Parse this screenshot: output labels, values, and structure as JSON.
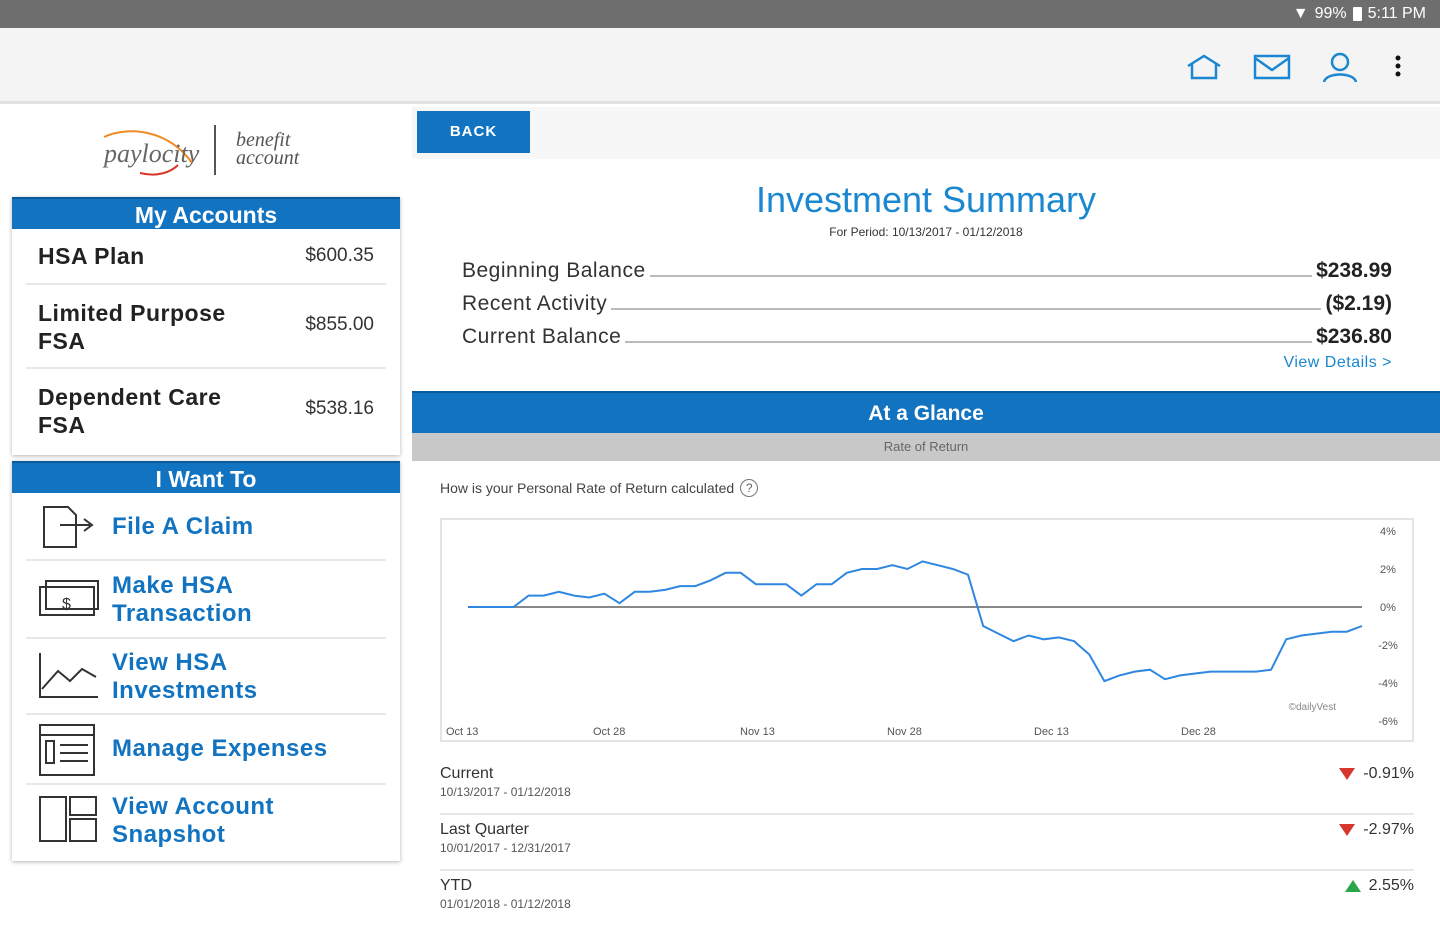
{
  "status_bar": {
    "battery": "99%",
    "time": "5:11 PM"
  },
  "app_bar": {
    "icons": [
      "home-icon",
      "mail-icon",
      "user-icon",
      "more-vert-icon"
    ]
  },
  "logo": {
    "brand": "paylocity",
    "product_line1": "benefit",
    "product_line2": "account"
  },
  "my_accounts": {
    "title": "My Accounts",
    "items": [
      {
        "name": "HSA Plan",
        "amount": "$600.35"
      },
      {
        "name_line1": "Limited Purpose",
        "name_line2": "FSA",
        "amount": "$855.00"
      },
      {
        "name_line1": "Dependent Care",
        "name_line2": "FSA",
        "amount": "$538.16"
      }
    ]
  },
  "i_want_to": {
    "title": "I Want To",
    "items": [
      {
        "icon": "file-claim-icon",
        "line1": "File A Claim"
      },
      {
        "icon": "money-icon",
        "line1": "Make HSA",
        "line2": "Transaction"
      },
      {
        "icon": "chart-line-icon",
        "line1": "View HSA",
        "line2": "Investments"
      },
      {
        "icon": "expenses-list-icon",
        "line1": "Manage Expenses"
      },
      {
        "icon": "dashboard-icon",
        "line1": "View Account",
        "line2": "Snapshot"
      }
    ]
  },
  "main": {
    "back_label": "BACK",
    "title": "Investment Summary",
    "period": "For Period: 10/13/2017 - 01/12/2018",
    "balances": [
      {
        "label": "Beginning Balance",
        "value": "$238.99"
      },
      {
        "label": "Recent Activity",
        "value": "($2.19)"
      },
      {
        "label": "Current Balance",
        "value": "$236.80"
      }
    ],
    "view_details": "View Details >",
    "glance_title": "At a Glance",
    "tab_label": "Rate of Return",
    "how_calculated": "How is your Personal Rate of Return calculated",
    "help_symbol": "?",
    "watermark": "©dailyVest",
    "returns": [
      {
        "name": "Current",
        "dates": "10/13/2017 - 01/12/2018",
        "value": "-0.91%",
        "direction": "down"
      },
      {
        "name": "Last Quarter",
        "dates": "10/01/2017 - 12/31/2017",
        "value": "-2.97%",
        "direction": "down"
      },
      {
        "name": "YTD",
        "dates": "01/01/2018 - 01/12/2018",
        "value": "2.55%",
        "direction": "up"
      }
    ]
  },
  "colors": {
    "accent": "#1273c0",
    "link": "#1a87d0",
    "down": "#d9362b",
    "up": "#2aa64a",
    "line": "#2f87e0"
  },
  "chart_data": {
    "type": "line",
    "title": "",
    "xlabel": "",
    "ylabel": "",
    "x_tick_labels": [
      "Oct 13",
      "Oct 28",
      "Nov 13",
      "Nov 28",
      "Dec 13",
      "Dec 28"
    ],
    "y_tick_labels": [
      "4%",
      "2%",
      "0%",
      "-2%",
      "-4%",
      "-6%"
    ],
    "ylim": [
      -6,
      4
    ],
    "grid": false,
    "series": [
      {
        "values": [
          0.0,
          0.0,
          0.0,
          0.0,
          0.6,
          0.6,
          0.8,
          0.6,
          0.5,
          0.7,
          0.2,
          0.8,
          0.8,
          0.9,
          1.1,
          1.1,
          1.4,
          1.8,
          1.8,
          1.2,
          1.2,
          1.2,
          0.6,
          1.2,
          1.2,
          1.8,
          2.0,
          2.0,
          2.2,
          2.0,
          2.4,
          2.2,
          2.0,
          1.7,
          -1.0,
          -1.4,
          -1.8,
          -1.5,
          -1.7,
          -1.6,
          -1.8,
          -2.5,
          -3.9,
          -3.6,
          -3.4,
          -3.3,
          -3.8,
          -3.6,
          -3.5,
          -3.4,
          -3.4,
          -3.4,
          -3.4,
          -3.3,
          -1.7,
          -1.5,
          -1.4,
          -1.3,
          -1.3,
          -1.0
        ]
      }
    ]
  }
}
